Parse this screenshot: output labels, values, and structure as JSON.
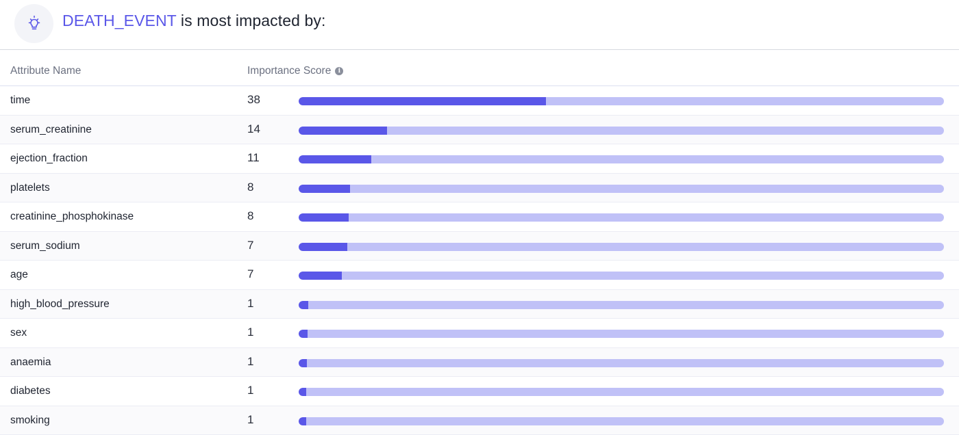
{
  "header": {
    "target": "DEATH_EVENT",
    "title_rest": " is most impacted by:",
    "icon": "lightbulb-icon"
  },
  "table": {
    "col_name": "Attribute Name",
    "col_score": "Importance Score",
    "info_icon": "info-icon",
    "rows": [
      {
        "name": "time",
        "score": "38",
        "fill": 0.383
      },
      {
        "name": "serum_creatinine",
        "score": "14",
        "fill": 0.137
      },
      {
        "name": "ejection_fraction",
        "score": "11",
        "fill": 0.113
      },
      {
        "name": "platelets",
        "score": "8",
        "fill": 0.08
      },
      {
        "name": "creatinine_phosphokinase",
        "score": "8",
        "fill": 0.078
      },
      {
        "name": "serum_sodium",
        "score": "7",
        "fill": 0.075
      },
      {
        "name": "age",
        "score": "7",
        "fill": 0.067
      },
      {
        "name": "high_blood_pressure",
        "score": "1",
        "fill": 0.015
      },
      {
        "name": "sex",
        "score": "1",
        "fill": 0.014
      },
      {
        "name": "anaemia",
        "score": "1",
        "fill": 0.013
      },
      {
        "name": "diabetes",
        "score": "1",
        "fill": 0.012
      },
      {
        "name": "smoking",
        "score": "1",
        "fill": 0.012
      }
    ]
  },
  "colors": {
    "accent": "#5a57e8",
    "bar_track": "#c0c1f7"
  }
}
